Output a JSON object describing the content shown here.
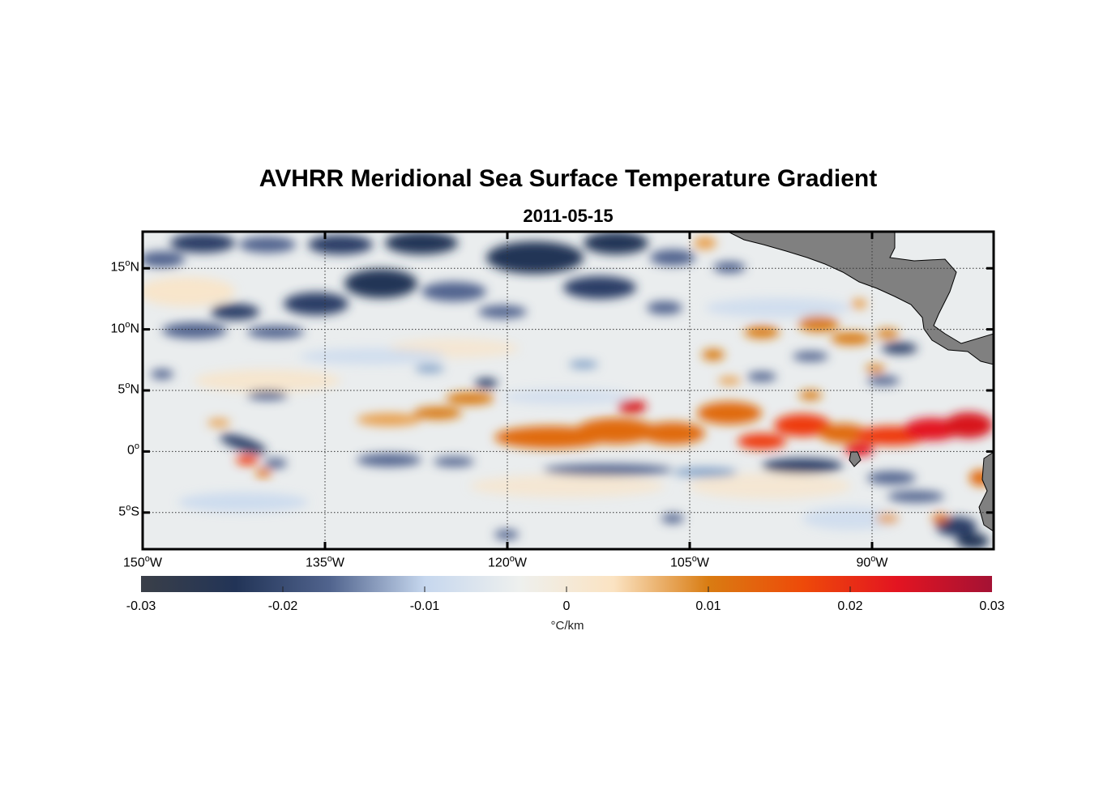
{
  "chart_data": {
    "type": "heatmap",
    "title": "AVHRR Meridional Sea Surface Temperature Gradient",
    "subtitle": "2011-05-15",
    "x_axis": {
      "range_deg": [
        -150,
        -80
      ],
      "ticks": [
        {
          "value": -150,
          "num": "150",
          "deg": "o",
          "hemi": "W"
        },
        {
          "value": -135,
          "num": "135",
          "deg": "o",
          "hemi": "W"
        },
        {
          "value": -120,
          "num": "120",
          "deg": "o",
          "hemi": "W"
        },
        {
          "value": -105,
          "num": "105",
          "deg": "o",
          "hemi": "W"
        },
        {
          "value": -90,
          "num": "90",
          "deg": "o",
          "hemi": "W"
        }
      ]
    },
    "y_axis": {
      "range_deg": [
        -8,
        18
      ],
      "ticks": [
        {
          "value": 15,
          "num": "15",
          "deg": "o",
          "hemi": "N"
        },
        {
          "value": 10,
          "num": "10",
          "deg": "o",
          "hemi": "N"
        },
        {
          "value": 5,
          "num": "5",
          "deg": "o",
          "hemi": "N"
        },
        {
          "value": 0,
          "num": "0",
          "deg": "o",
          "hemi": ""
        },
        {
          "value": -5,
          "num": "5",
          "deg": "o",
          "hemi": "S"
        }
      ]
    },
    "colorbar": {
      "range": [
        -0.03,
        0.03
      ],
      "ticks": [
        -0.03,
        -0.02,
        -0.01,
        0,
        0.01,
        0.02,
        0.03
      ],
      "tick_labels": [
        "-0.03",
        "-0.02",
        "-0.01",
        "0",
        "0.01",
        "0.02",
        "0.03"
      ],
      "units": "°C/km",
      "colors": [
        "#3a3f48",
        "#223457",
        "#51648e",
        "#c6d7ee",
        "#eef0ee",
        "#fbe3c2",
        "#d97c12",
        "#ee4a09",
        "#e31421",
        "#a41234"
      ]
    },
    "features": [
      {
        "name": "equatorial-warm-front-band",
        "sign": "positive",
        "lon": [
          -125,
          -80
        ],
        "lat": [
          0,
          4
        ],
        "peak": 0.025
      },
      {
        "name": "northern-tropical-cold-eddies",
        "sign": "negative",
        "lon": [
          -150,
          -110
        ],
        "lat": [
          9,
          18
        ],
        "peak": -0.02
      },
      {
        "name": "southern-equatorial-cold-streaks",
        "sign": "negative",
        "lon": [
          -150,
          -86
        ],
        "lat": [
          -3,
          -1
        ],
        "peak": -0.014
      },
      {
        "name": "northeastern-warm-patches",
        "sign": "positive",
        "lon": [
          -105,
          -87
        ],
        "lat": [
          6,
          11
        ],
        "peak": 0.013
      },
      {
        "name": "western-cold-warm-pair",
        "sign": "mixed",
        "lon": [
          -144,
          -136
        ],
        "lat": [
          -2,
          2
        ],
        "peak": 0.02
      }
    ],
    "land_color": "#808080"
  }
}
